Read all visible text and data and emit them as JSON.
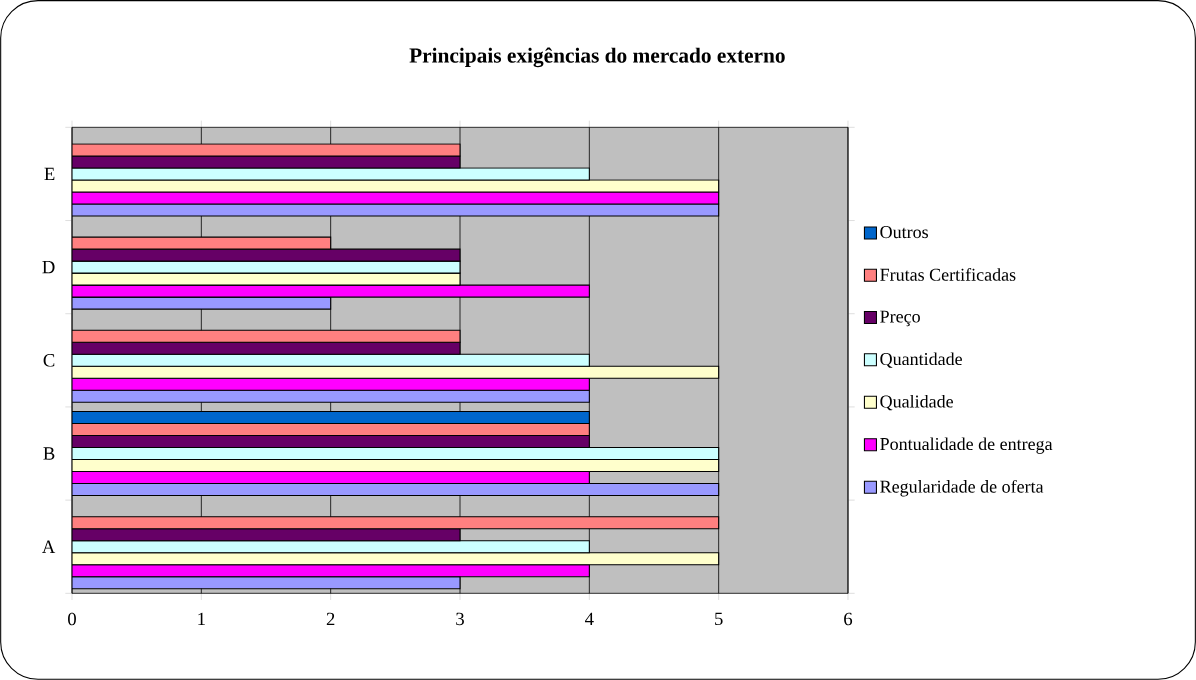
{
  "chart_data": {
    "type": "bar",
    "orientation": "horizontal",
    "title": "Principais exigências do mercado externo",
    "categories": [
      "E",
      "D",
      "C",
      "B",
      "A"
    ],
    "series": [
      {
        "name": "Regularidade de oferta",
        "color": "#9999ff",
        "values": [
          5,
          2,
          4,
          5,
          3
        ]
      },
      {
        "name": "Pontualidade de entrega",
        "color": "#ff00ff",
        "values": [
          5,
          4,
          4,
          4,
          4
        ]
      },
      {
        "name": "Qualidade",
        "color": "#ffffcc",
        "values": [
          5,
          3,
          5,
          5,
          5
        ]
      },
      {
        "name": "Quantidade",
        "color": "#ccffff",
        "values": [
          4,
          3,
          4,
          5,
          4
        ]
      },
      {
        "name": "Preço",
        "color": "#660066",
        "values": [
          3,
          3,
          3,
          4,
          3
        ]
      },
      {
        "name": "Frutas Certificadas",
        "color": "#ff8080",
        "values": [
          3,
          2,
          3,
          4,
          5
        ]
      },
      {
        "name": "Outros",
        "color": "#0066cc",
        "values": [
          null,
          null,
          null,
          4,
          null
        ]
      }
    ],
    "xlim": [
      0,
      6
    ],
    "xticks": [
      0,
      1,
      2,
      3,
      4,
      5,
      6
    ],
    "grid": "x",
    "legend": "right"
  }
}
